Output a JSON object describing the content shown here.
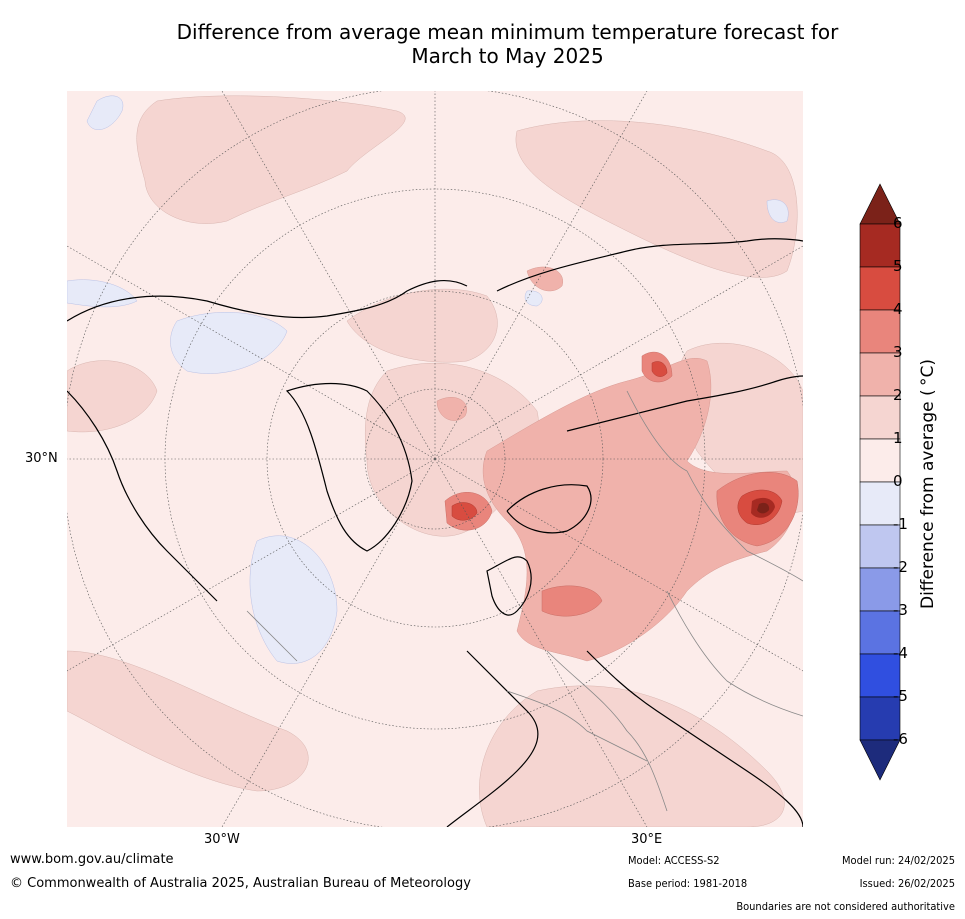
{
  "title": {
    "line1": "Difference from average mean minimum temperature forecast for",
    "line2": "March to May 2025"
  },
  "map": {
    "lon_labels": [
      "30°W",
      "30°E"
    ],
    "lat_labels": [
      "30°N"
    ]
  },
  "colorbar": {
    "label": "Difference from average ( °C)",
    "ticks": [
      "6",
      "5",
      "4",
      "3",
      "2",
      "1",
      "0",
      "-1",
      "-2",
      "-3",
      "-4",
      "-5",
      "-6"
    ],
    "colors": {
      "6_plus": "#7b2219",
      "5_6": "#a62a22",
      "4_5": "#d84c40",
      "3_4": "#e9857c",
      "2_3": "#f0b2ab",
      "1_2": "#f5d5d1",
      "0_1": "#fcecea",
      "m1_0": "#e7eaf8",
      "m2_m1": "#bfc7f0",
      "m3_m2": "#8a9ae8",
      "m4_m3": "#5b73e2",
      "m5_m4": "#304fe0",
      "m6_m5": "#263cb0",
      "below_m6": "#1d2b7c"
    }
  },
  "footer": {
    "website": "www.bom.gov.au/climate",
    "copyright": "© Commonwealth of Australia 2025, Australian Bureau of Meteorology",
    "model": "Model: ACCESS-S2",
    "base_period": "Base period: 1981-2018",
    "model_run": "Model run: 24/02/2025",
    "issued": "Issued: 26/02/2025",
    "boundaries_note": "Boundaries are not considered authoritative"
  }
}
